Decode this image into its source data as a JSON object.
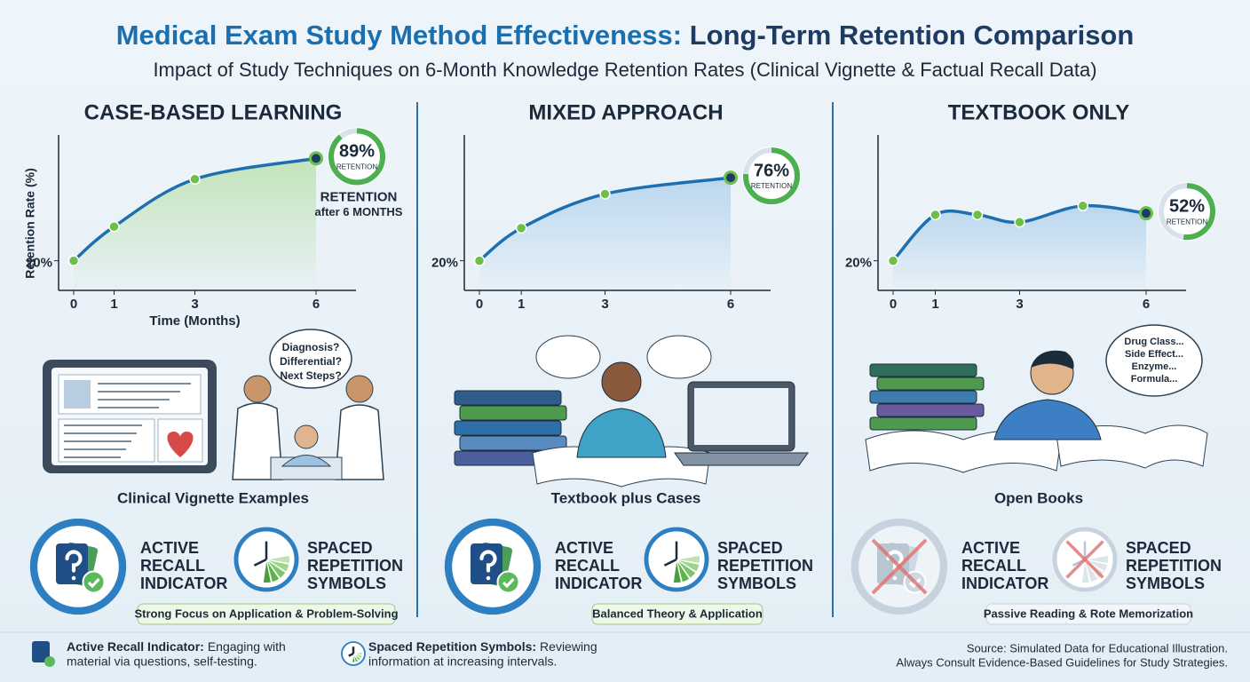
{
  "header": {
    "title_part1": "Medical Exam Study Method Effectiveness:",
    "title_part2": "Long-Term Retention Comparison",
    "subtitle": "Impact of Study Techniques on 6-Month Knowledge Retention Rates (Clinical Vignette & Factual Recall Data)"
  },
  "chart_data": [
    {
      "type": "line",
      "title": "CASE-BASED LEARNING",
      "y_label": "Retention Rate (%)",
      "x_label": "Time (Months)",
      "x": [
        0,
        1,
        3,
        6
      ],
      "values": [
        20,
        43,
        75,
        89
      ],
      "value_labels": [
        null,
        null,
        null,
        "89%"
      ],
      "badge_label": "RETENTION",
      "annotation": [
        "RETENTION",
        "after 6 MONTHS"
      ],
      "xlim": [
        0,
        6
      ],
      "xticks": [
        0,
        1,
        3,
        6
      ],
      "ylim": [
        0,
        100
      ],
      "yticks": [
        {
          "value": 20,
          "label": "20%"
        }
      ],
      "color": "#1e6fb0",
      "marker_color": "#6cc04a",
      "area_color": "#8fd16a"
    },
    {
      "type": "line",
      "title": "MIXED APPROACH",
      "x": [
        0,
        1,
        3,
        6
      ],
      "values": [
        20,
        42,
        65,
        76
      ],
      "value_labels": [
        null,
        null,
        null,
        "76%"
      ],
      "badge_label": "RETENTION",
      "xlim": [
        0,
        6
      ],
      "xticks": [
        0,
        1,
        3,
        6
      ],
      "ylim": [
        0,
        100
      ],
      "yticks": [
        {
          "value": 20,
          "label": "20%"
        }
      ],
      "color": "#1e6fb0",
      "marker_color": "#6cc04a",
      "area_color": "#7fb4e0"
    },
    {
      "type": "line",
      "title": "TEXTBOOK ONLY",
      "x": [
        0,
        1,
        2,
        3,
        4.5,
        6
      ],
      "values": [
        20,
        51,
        51,
        46,
        57,
        52
      ],
      "value_labels": [
        null,
        null,
        null,
        null,
        null,
        "52%"
      ],
      "badge_label": "RETENTION",
      "xlim": [
        0,
        6
      ],
      "xticks": [
        0,
        1,
        3,
        6
      ],
      "ylim": [
        0,
        100
      ],
      "yticks": [
        {
          "value": 20,
          "label": "20%"
        }
      ],
      "color": "#1e6fb0",
      "marker_color": "#6cc04a",
      "area_color": "#7fb4e0"
    }
  ],
  "panels": [
    {
      "caption": "Clinical Vignette Examples",
      "bubble": [
        "Diagnosis?",
        "Differential?",
        "Next Steps?"
      ],
      "recall_label": [
        "ACTIVE",
        "RECALL",
        "INDICATOR"
      ],
      "spaced_label": [
        "SPACED",
        "REPETITION",
        "SYMBOLS"
      ],
      "banner": "Strong Focus on Application & Problem-Solving",
      "disabled": false
    },
    {
      "caption": "Textbook plus Cases",
      "recall_label": [
        "ACTIVE",
        "RECALL",
        "INDICATOR"
      ],
      "spaced_label": [
        "SPACED",
        "REPETITION",
        "SYMBOLS"
      ],
      "banner": "Balanced Theory & Application",
      "disabled": false
    },
    {
      "caption": "Open Books",
      "bubble": [
        "Drug Class...",
        "Side Effect...",
        "Enzyme...",
        "Formula..."
      ],
      "recall_label": [
        "ACTIVE",
        "RECALL",
        "INDICATOR"
      ],
      "spaced_label": [
        "SPACED",
        "REPETITION",
        "SYMBOLS"
      ],
      "banner": "Passive Reading & Rote Memorization",
      "disabled": true
    }
  ],
  "legend": [
    {
      "term": "Active Recall Indicator:",
      "description": [
        "Engaging with",
        "material via questions, self-testing."
      ]
    },
    {
      "term": "Spaced Repetition Symbols:",
      "description": [
        "Reviewing",
        "information at increasing intervals."
      ]
    }
  ],
  "source": [
    "Source: Simulated Data for Educational Illustration.",
    "Always Consult Evidence-Based Guidelines for Study Strategies."
  ]
}
